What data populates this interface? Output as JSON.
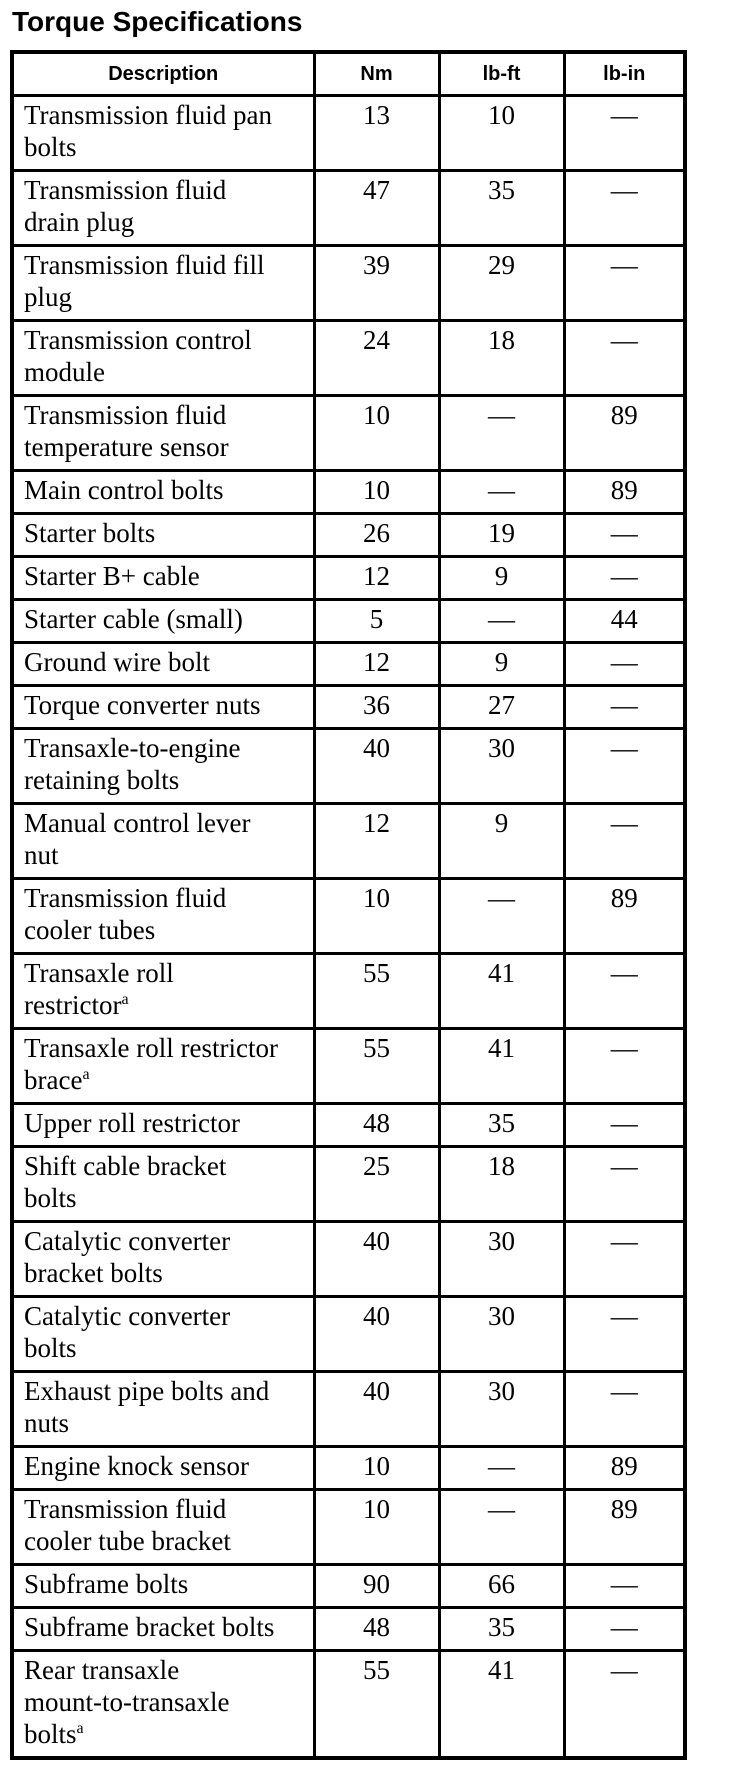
{
  "page_title": "Torque Specifications",
  "colors": {
    "text": "#000000",
    "background": "#ffffff",
    "border": "#000000"
  },
  "table": {
    "columns": [
      "Description",
      "Nm",
      "lb-ft",
      "lb-in"
    ],
    "rows": [
      {
        "description": "Transmission fluid pan bolts",
        "sup": "",
        "nm": "13",
        "lb_ft": "10",
        "lb_in": "—"
      },
      {
        "description": "Transmission fluid drain plug",
        "sup": "",
        "nm": "47",
        "lb_ft": "35",
        "lb_in": "—"
      },
      {
        "description": "Transmission fluid fill plug",
        "sup": "",
        "nm": "39",
        "lb_ft": "29",
        "lb_in": "—"
      },
      {
        "description": "Transmission control module",
        "sup": "",
        "nm": "24",
        "lb_ft": "18",
        "lb_in": "—"
      },
      {
        "description": "Transmission fluid temperature sensor",
        "sup": "",
        "nm": "10",
        "lb_ft": "—",
        "lb_in": "89"
      },
      {
        "description": "Main control bolts",
        "sup": "",
        "nm": "10",
        "lb_ft": "—",
        "lb_in": "89"
      },
      {
        "description": "Starter bolts",
        "sup": "",
        "nm": "26",
        "lb_ft": "19",
        "lb_in": "—"
      },
      {
        "description": "Starter B+ cable",
        "sup": "",
        "nm": "12",
        "lb_ft": "9",
        "lb_in": "—"
      },
      {
        "description": "Starter cable (small)",
        "sup": "",
        "nm": "5",
        "lb_ft": "—",
        "lb_in": "44"
      },
      {
        "description": "Ground wire bolt",
        "sup": "",
        "nm": "12",
        "lb_ft": "9",
        "lb_in": "—"
      },
      {
        "description": "Torque converter nuts",
        "sup": "",
        "nm": "36",
        "lb_ft": "27",
        "lb_in": "—"
      },
      {
        "description": "Transaxle-to-engine retaining bolts",
        "sup": "",
        "nm": "40",
        "lb_ft": "30",
        "lb_in": "—"
      },
      {
        "description": "Manual control lever nut",
        "sup": "",
        "nm": "12",
        "lb_ft": "9",
        "lb_in": "—"
      },
      {
        "description": "Transmission fluid cooler tubes",
        "sup": "",
        "nm": "10",
        "lb_ft": "—",
        "lb_in": "89"
      },
      {
        "description": "Transaxle roll restrictor",
        "sup": "a",
        "nm": "55",
        "lb_ft": "41",
        "lb_in": "—"
      },
      {
        "description": "Transaxle roll restrictor brace",
        "sup": "a",
        "nm": "55",
        "lb_ft": "41",
        "lb_in": "—"
      },
      {
        "description": "Upper roll restrictor",
        "sup": "",
        "nm": "48",
        "lb_ft": "35",
        "lb_in": "—"
      },
      {
        "description": "Shift cable bracket bolts",
        "sup": "",
        "nm": "25",
        "lb_ft": "18",
        "lb_in": "—"
      },
      {
        "description": "Catalytic converter bracket bolts",
        "sup": "",
        "nm": "40",
        "lb_ft": "30",
        "lb_in": "—"
      },
      {
        "description": "Catalytic converter bolts",
        "sup": "",
        "nm": "40",
        "lb_ft": "30",
        "lb_in": "—"
      },
      {
        "description": "Exhaust pipe bolts and nuts",
        "sup": "",
        "nm": "40",
        "lb_ft": "30",
        "lb_in": "—"
      },
      {
        "description": "Engine knock sensor",
        "sup": "",
        "nm": "10",
        "lb_ft": "—",
        "lb_in": "89"
      },
      {
        "description": "Transmission fluid cooler tube bracket",
        "sup": "",
        "nm": "10",
        "lb_ft": "—",
        "lb_in": "89"
      },
      {
        "description": "Subframe bolts",
        "sup": "",
        "nm": "90",
        "lb_ft": "66",
        "lb_in": "—"
      },
      {
        "description": "Subframe bracket bolts",
        "sup": "",
        "nm": "48",
        "lb_ft": "35",
        "lb_in": "—"
      },
      {
        "description": "Rear transaxle mount-to-transaxle bolts",
        "sup": "a",
        "nm": "55",
        "lb_ft": "41",
        "lb_in": "—"
      }
    ]
  }
}
